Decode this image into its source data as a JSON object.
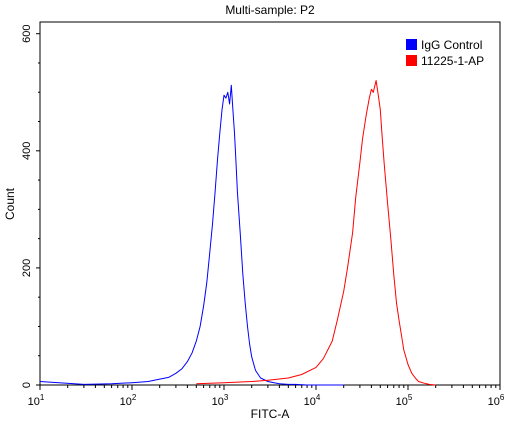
{
  "chart_data": {
    "type": "line",
    "title": "Multi-sample: P2",
    "xlabel": "FITC-A",
    "ylabel": "Count",
    "x_scale": "log10",
    "xlim": [
      10,
      1000000
    ],
    "ylim": [
      0,
      620
    ],
    "x_ticks": [
      {
        "value": 10,
        "base": "10",
        "exp": "1"
      },
      {
        "value": 100,
        "base": "10",
        "exp": "2"
      },
      {
        "value": 1000,
        "base": "10",
        "exp": "3"
      },
      {
        "value": 10000,
        "base": "10",
        "exp": "4"
      },
      {
        "value": 100000,
        "base": "10",
        "exp": "5"
      },
      {
        "value": 1000000,
        "base": "10",
        "exp": "6"
      }
    ],
    "y_ticks": [
      0,
      200,
      400,
      600
    ],
    "grid": false,
    "legend_position": "top-right",
    "series": [
      {
        "name": "IgG Control",
        "color": "#0000ff",
        "x": [
          10,
          30,
          60,
          100,
          150,
          200,
          250,
          300,
          350,
          400,
          450,
          500,
          550,
          600,
          650,
          700,
          750,
          800,
          850,
          900,
          950,
          1000,
          1050,
          1100,
          1150,
          1200,
          1250,
          1300,
          1350,
          1400,
          1500,
          1600,
          1700,
          1800,
          1900,
          2000,
          2200,
          2500,
          3000,
          3500,
          4000,
          5000,
          6000,
          8000,
          10000,
          20000
        ],
        "y": [
          6,
          1,
          2,
          4,
          6,
          10,
          13,
          20,
          28,
          40,
          55,
          75,
          100,
          135,
          175,
          225,
          275,
          330,
          385,
          430,
          470,
          495,
          490,
          500,
          480,
          512,
          470,
          430,
          380,
          330,
          260,
          190,
          140,
          100,
          70,
          48,
          25,
          12,
          6,
          4,
          2,
          1,
          1,
          0,
          0,
          0
        ]
      },
      {
        "name": "11225-1-AP",
        "color": "#ff0000",
        "x": [
          500,
          1000,
          2000,
          3000,
          5000,
          7000,
          10000,
          12000,
          15000,
          17000,
          20000,
          22000,
          25000,
          27000,
          30000,
          32000,
          35000,
          38000,
          40000,
          42000,
          45000,
          48000,
          50000,
          52000,
          55000,
          60000,
          65000,
          70000,
          75000,
          80000,
          90000,
          100000,
          110000,
          120000,
          130000,
          150000,
          170000,
          200000
        ],
        "y": [
          2,
          4,
          6,
          8,
          12,
          18,
          30,
          45,
          75,
          110,
          160,
          200,
          260,
          320,
          380,
          420,
          460,
          490,
          505,
          500,
          520,
          490,
          470,
          430,
          380,
          310,
          250,
          190,
          140,
          110,
          60,
          35,
          20,
          12,
          6,
          3,
          1,
          0
        ]
      }
    ]
  }
}
